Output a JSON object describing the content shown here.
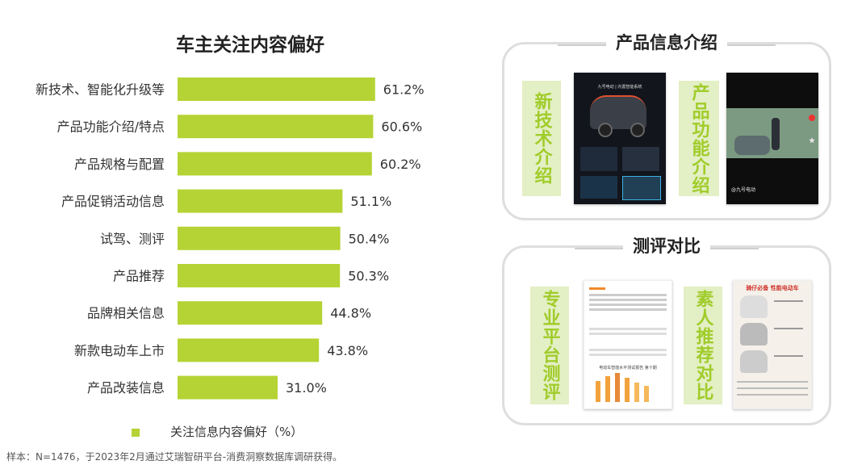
{
  "chart_data": {
    "type": "bar",
    "orientation": "horizontal",
    "title": "车主关注内容偏好",
    "categories": [
      "新技术、智能化升级等",
      "产品功能介绍/特点",
      "产品规格与配置",
      "产品促销活动信息",
      "试驾、测评",
      "产品推荐",
      "品牌相关信息",
      "新款电动车上市",
      "产品改装信息"
    ],
    "values": [
      61.2,
      60.6,
      60.2,
      51.1,
      50.4,
      50.3,
      44.8,
      43.8,
      31.0
    ],
    "value_labels": [
      "61.2%",
      "60.6%",
      "60.2%",
      "51.1%",
      "50.4%",
      "50.3%",
      "44.8%",
      "43.8%",
      "31.0%"
    ],
    "series": [
      {
        "name": "关注信息内容偏好（%）",
        "color": "#b5d334"
      }
    ],
    "xlim": [
      0,
      100
    ],
    "legend_position": "bottom",
    "grid": false
  },
  "footnote": "样本：N=1476，于2023年2月通过艾瑞智研平台-消费洞察数据库调研获得。",
  "panels": {
    "product_info": {
      "title": "产品信息介绍",
      "items": [
        {
          "label": "新技术介绍"
        },
        {
          "label": "产品功能介绍"
        }
      ]
    },
    "review": {
      "title": "测评对比",
      "items": [
        {
          "label": "专业平台测评"
        },
        {
          "label": "素人推荐对比"
        }
      ]
    }
  },
  "thumbnails": {
    "tech_title": "九号电动 | 内置智能系统",
    "video_caption": "@九号电动",
    "doc_title": "电动车智能水平测试报告 第十期",
    "poster_title": "骑仔必备 性能电动车"
  },
  "colors": {
    "bar": "#b5d334",
    "label_fill": "#e3efc4",
    "label_text": "#a0cc2a",
    "panel_border": "#dedede"
  }
}
